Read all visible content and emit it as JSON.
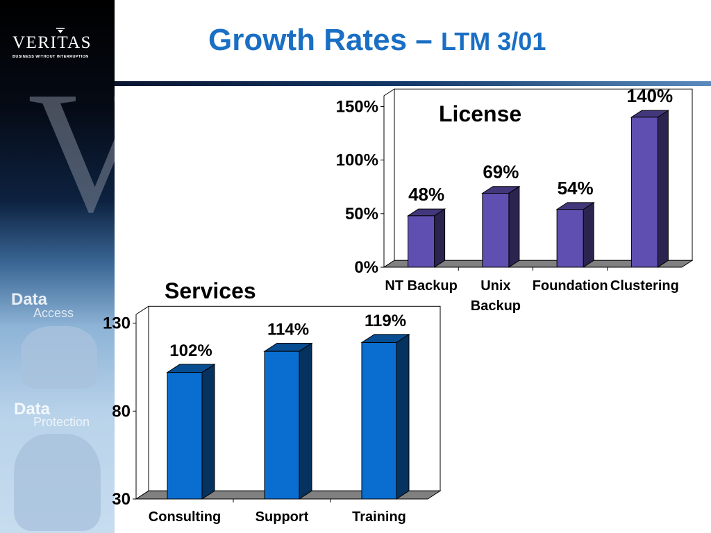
{
  "sidebar": {
    "logo_text": "VERITAS",
    "logo_tagline": "BUSINESS WITHOUT INTERRUPTION",
    "items": [
      {
        "main": "Data",
        "sub": "Access"
      },
      {
        "main": "Data",
        "sub": "Protection"
      }
    ]
  },
  "slide": {
    "title_main": "Growth Rates –",
    "title_sub": "LTM 3/01"
  },
  "colors": {
    "title": "#1a6fc4",
    "license_bar": "#5f4fb0",
    "services_bar": "#0a6ed0"
  },
  "chart_data": [
    {
      "type": "bar",
      "title": "License",
      "categories": [
        "NT Backup",
        "Unix Backup",
        "Foundation",
        "Clustering"
      ],
      "category_labels": [
        [
          "NT Backup"
        ],
        [
          "Unix",
          "Backup"
        ],
        [
          "Foundation"
        ],
        [
          "Clustering"
        ]
      ],
      "values": [
        48,
        69,
        54,
        140
      ],
      "value_labels": [
        "48%",
        "69%",
        "54%",
        "140%"
      ],
      "yticks": [
        0,
        50,
        100,
        150
      ],
      "ytick_labels": [
        "0%",
        "50%",
        "100%",
        "150%"
      ],
      "ylim": [
        0,
        160
      ],
      "grid": false,
      "style": "3d"
    },
    {
      "type": "bar",
      "title": "Services",
      "categories": [
        "Consulting",
        "Support",
        "Training"
      ],
      "values": [
        102,
        114,
        119
      ],
      "value_labels": [
        "102%",
        "114%",
        "119%"
      ],
      "yticks": [
        30,
        80,
        130
      ],
      "ytick_labels": [
        "30",
        "80",
        "130"
      ],
      "ylim": [
        30,
        135
      ],
      "grid": false,
      "style": "3d"
    }
  ]
}
